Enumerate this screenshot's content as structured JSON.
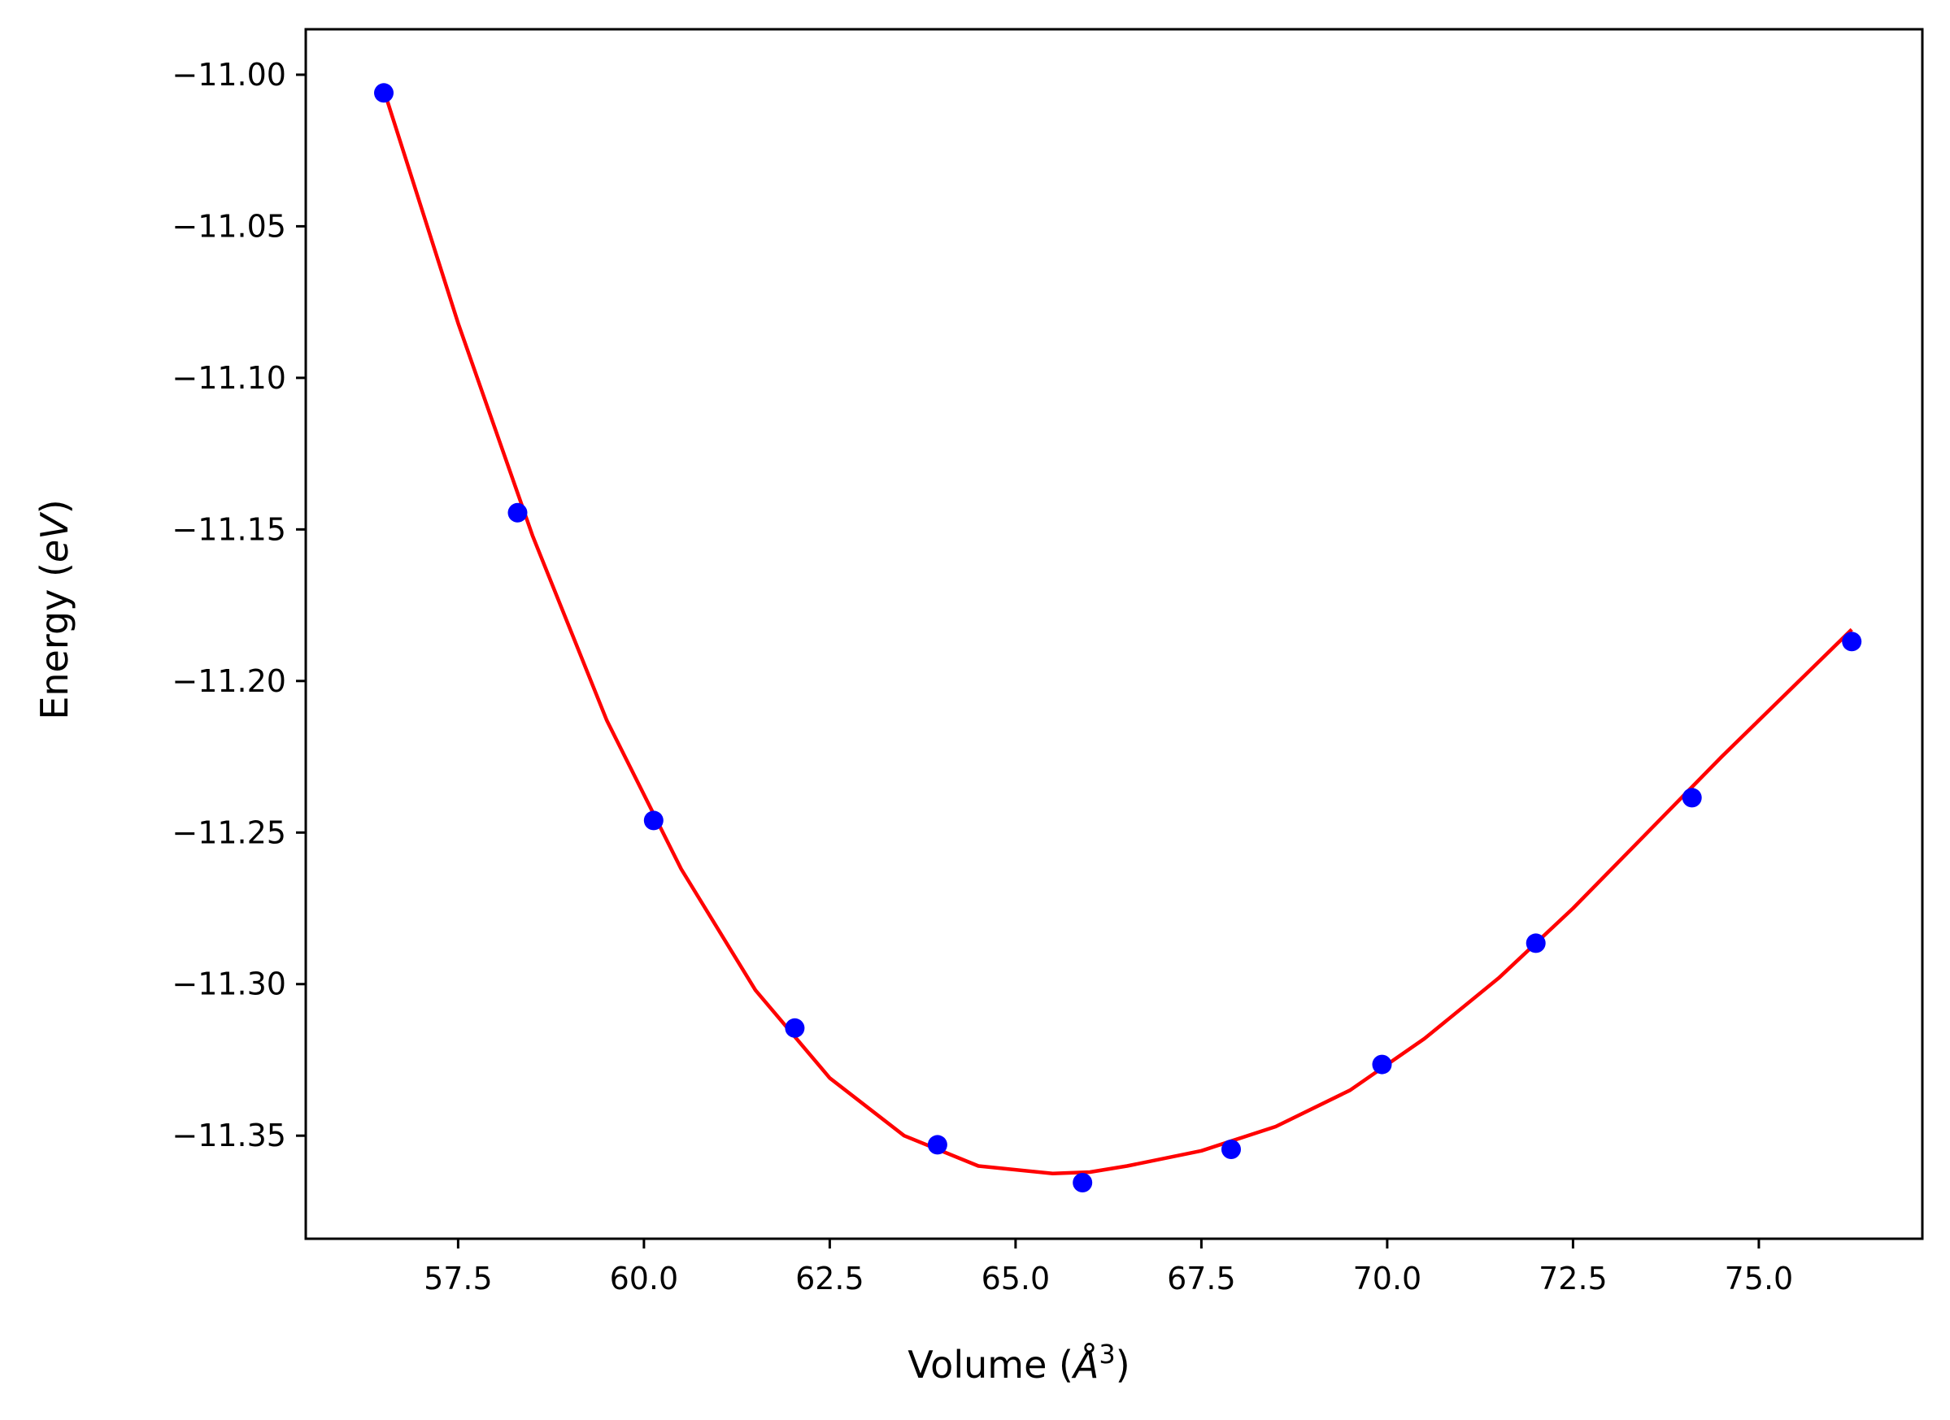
{
  "chart_data": {
    "type": "scatter",
    "xlabel_main": "Volume (",
    "xlabel_sym": "Å",
    "xlabel_sup": "3",
    "xlabel_end": ")",
    "ylabel_main": "Energy (",
    "ylabel_sym": "eV",
    "ylabel_end": ")",
    "xlim": [
      55.45,
      77.2
    ],
    "ylim": [
      -11.384,
      -10.985
    ],
    "xticks": [
      57.5,
      60.0,
      62.5,
      65.0,
      67.5,
      70.0,
      72.5,
      75.0
    ],
    "xtick_labels": [
      "57.5",
      "60.0",
      "62.5",
      "65.0",
      "67.5",
      "70.0",
      "72.5",
      "75.0"
    ],
    "yticks": [
      -11.0,
      -11.05,
      -11.1,
      -11.15,
      -11.2,
      -11.25,
      -11.3,
      -11.35
    ],
    "ytick_labels": [
      "−11.00",
      "−11.05",
      "−11.10",
      "−11.15",
      "−11.20",
      "−11.25",
      "−11.30",
      "−11.35"
    ],
    "grid": false,
    "series": [
      {
        "kind": "points",
        "color": "#0000ff",
        "x": [
          56.5,
          58.3,
          60.13,
          62.03,
          63.95,
          65.9,
          67.9,
          69.93,
          72.0,
          74.1,
          76.25
        ],
        "y": [
          -11.006,
          -11.1445,
          -11.246,
          -11.3145,
          -11.353,
          -11.3655,
          -11.3545,
          -11.3265,
          -11.2865,
          -11.2385,
          -11.187
        ]
      },
      {
        "kind": "fit-curve",
        "color": "#ff0000",
        "x": [
          56.5,
          57.5,
          58.5,
          59.5,
          60.5,
          61.5,
          62.5,
          63.5,
          64.5,
          65.5,
          66.0,
          66.5,
          67.5,
          68.5,
          69.5,
          70.5,
          71.5,
          72.5,
          73.5,
          74.5,
          75.5,
          76.25
        ],
        "y": [
          -11.005,
          -11.082,
          -11.152,
          -11.213,
          -11.262,
          -11.302,
          -11.331,
          -11.35,
          -11.36,
          -11.3625,
          -11.362,
          -11.36,
          -11.355,
          -11.347,
          -11.335,
          -11.318,
          -11.298,
          -11.275,
          -11.25,
          -11.225,
          -11.201,
          -11.183
        ]
      }
    ]
  }
}
